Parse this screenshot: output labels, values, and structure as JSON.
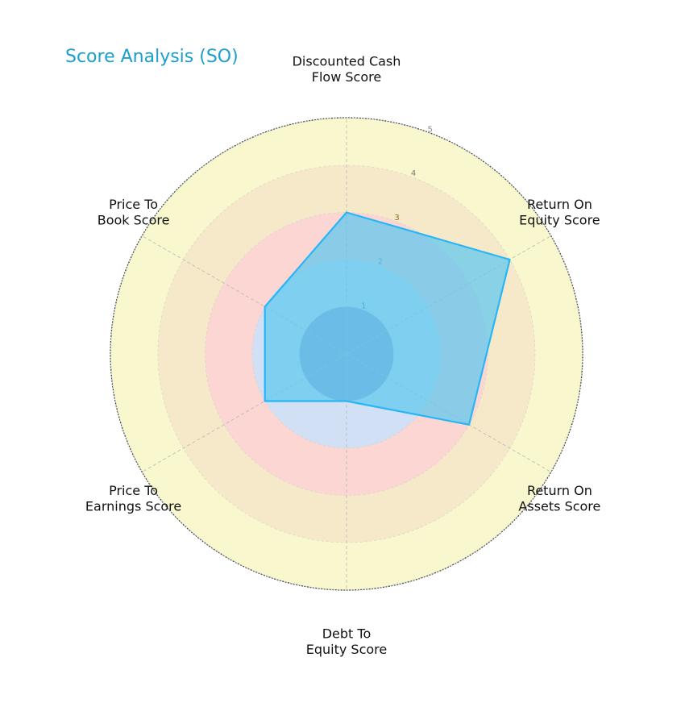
{
  "chart_data": {
    "type": "radar",
    "title": "Score Analysis (SO)",
    "categories": [
      "Discounted Cash Flow Score",
      "Return On Equity Score",
      "Return On Assets Score",
      "Debt To Equity Score",
      "Price To Earnings Score",
      "Price To Book Score"
    ],
    "category_label_lines": [
      [
        "Discounted Cash",
        "Flow Score"
      ],
      [
        "Return On",
        "Equity Score"
      ],
      [
        "Return On",
        "Assets Score"
      ],
      [
        "Debt To",
        "Equity Score"
      ],
      [
        "Price To",
        "Earnings Score"
      ],
      [
        "Price To",
        "Book Score"
      ]
    ],
    "series": [
      {
        "values": [
          3,
          4,
          3,
          1,
          2,
          2
        ]
      }
    ],
    "rlim": [
      0,
      5
    ],
    "rticks": [
      "1",
      "2",
      "3",
      "4",
      "5"
    ],
    "bands": [
      {
        "from": 0,
        "to": 1,
        "color": "#8a9fd6"
      },
      {
        "from": 1,
        "to": 2,
        "color": "#cfe0f5"
      },
      {
        "from": 2,
        "to": 3,
        "color": "#fbd5d3"
      },
      {
        "from": 3,
        "to": 4,
        "color": "#f6e8c8"
      },
      {
        "from": 4,
        "to": 5,
        "color": "#fbf8cc"
      },
      {
        "from": 5,
        "to": 6,
        "color": "#cbe2c8"
      }
    ],
    "series_color": "#29b6f6",
    "fill_color": "#5ec8ef",
    "title_color": "#1a9fd0",
    "grid": true
  }
}
